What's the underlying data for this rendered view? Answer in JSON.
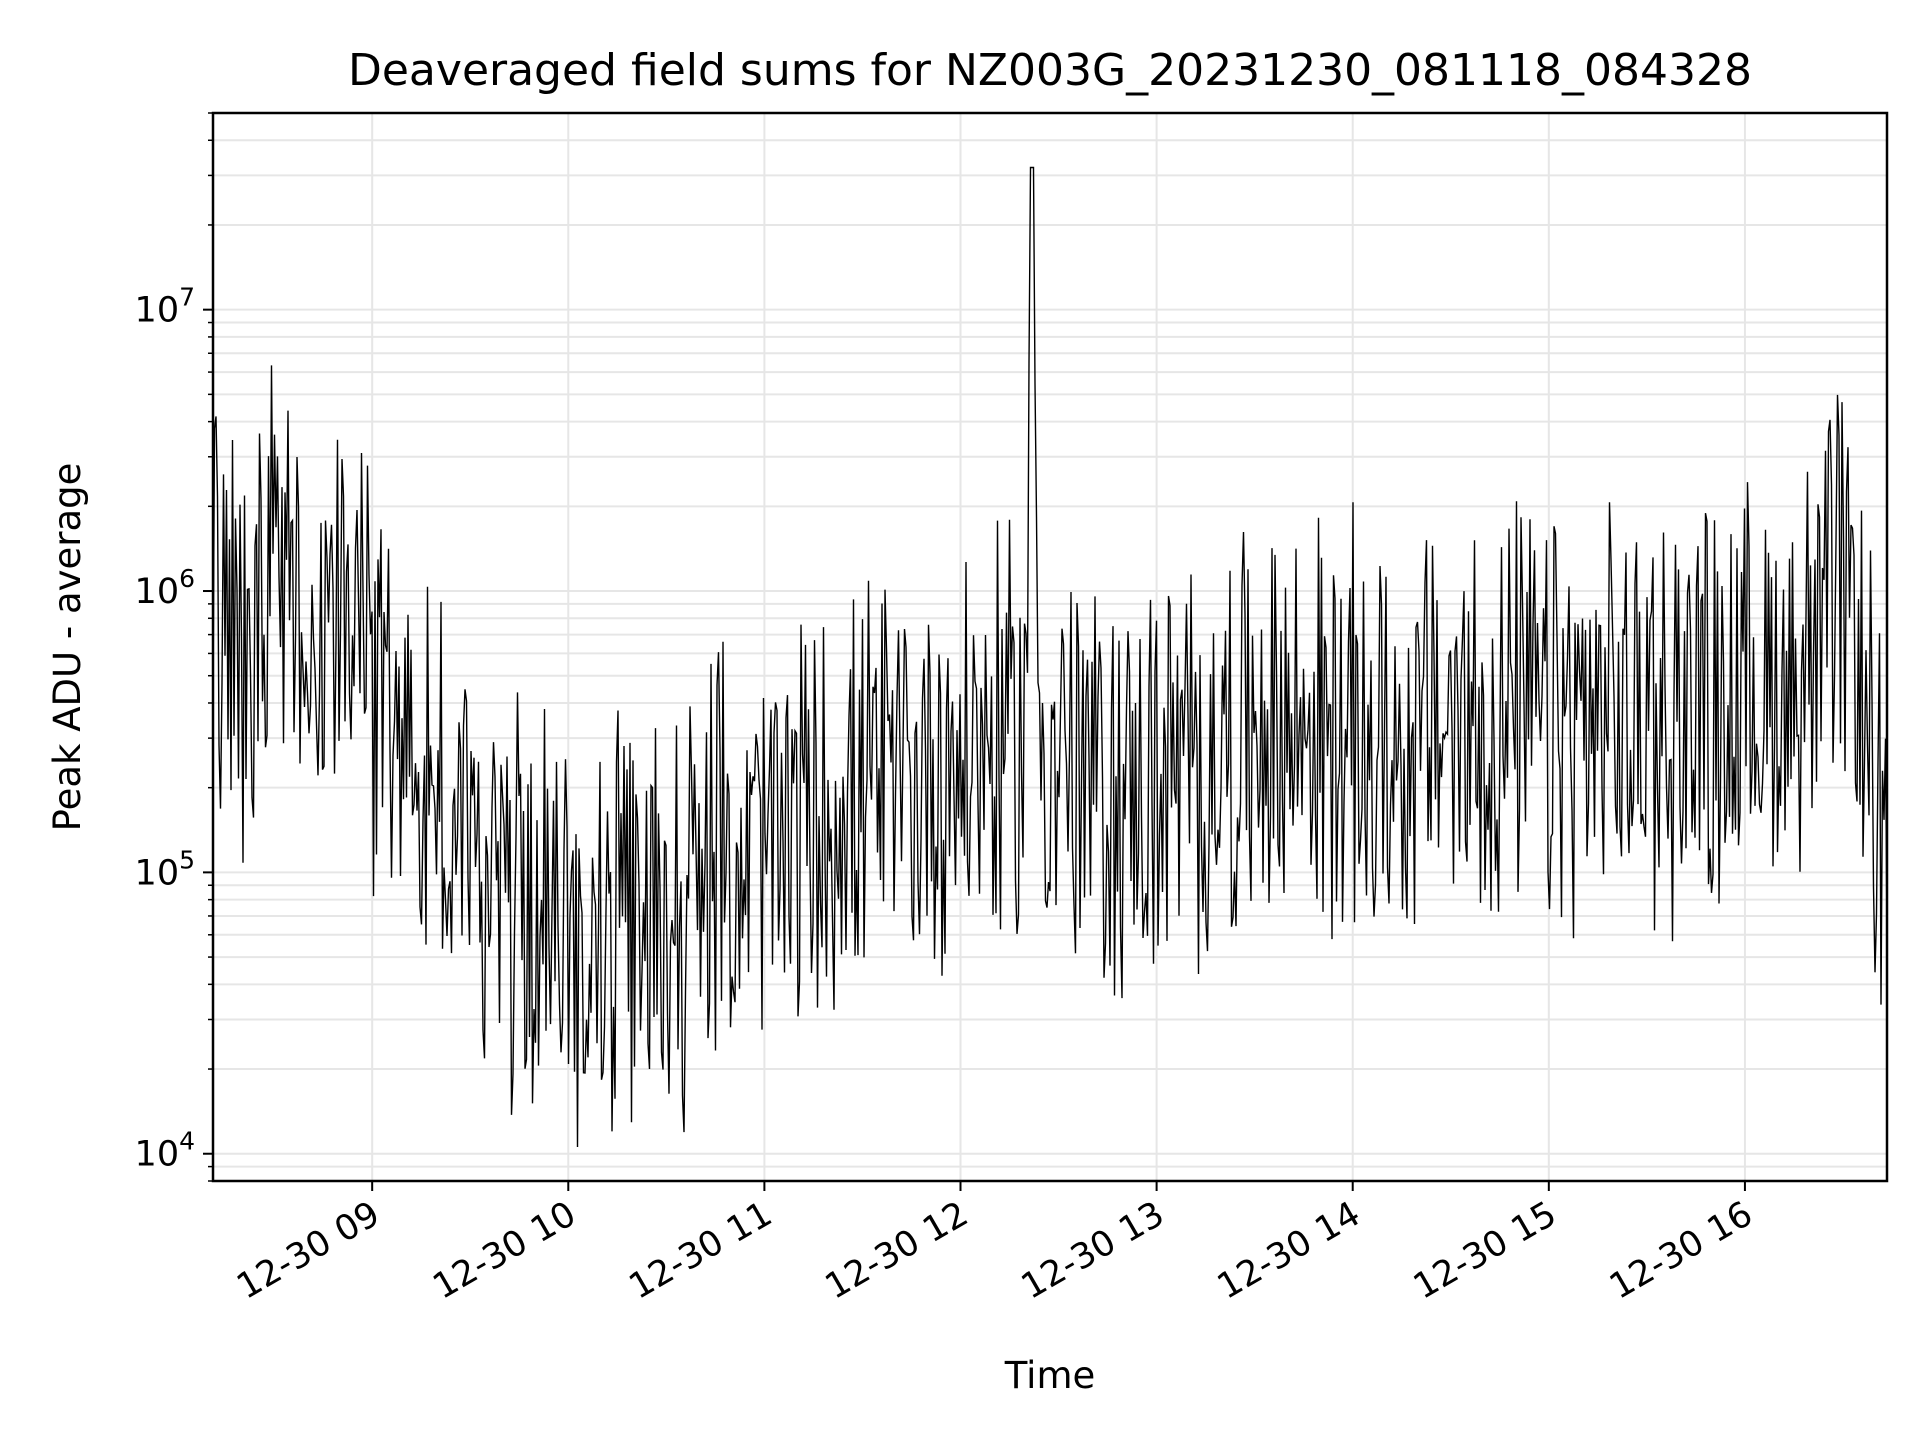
{
  "chart_data": {
    "type": "line",
    "title": "Deaveraged field sums for NZ003G_20231230_081118_084328",
    "xlabel": "Time",
    "ylabel": "Peak ADU - average",
    "xlim": [
      "2023-12-30 08:11:18",
      "2023-12-30 16:43:28"
    ],
    "ylim": [
      8000,
      50000000
    ],
    "yscale": "log",
    "grid": true,
    "x_ticks": [
      {
        "value": "2023-12-30 09:00",
        "label": "12-30 09"
      },
      {
        "value": "2023-12-30 10:00",
        "label": "12-30 10"
      },
      {
        "value": "2023-12-30 11:00",
        "label": "12-30 11"
      },
      {
        "value": "2023-12-30 12:00",
        "label": "12-30 12"
      },
      {
        "value": "2023-12-30 13:00",
        "label": "12-30 13"
      },
      {
        "value": "2023-12-30 14:00",
        "label": "12-30 14"
      },
      {
        "value": "2023-12-30 15:00",
        "label": "12-30 15"
      },
      {
        "value": "2023-12-30 16:00",
        "label": "12-30 16"
      }
    ],
    "y_ticks": [
      {
        "value": 10000,
        "base": "10",
        "exp": "4"
      },
      {
        "value": 100000,
        "base": "10",
        "exp": "5"
      },
      {
        "value": 1000000,
        "base": "10",
        "exp": "6"
      },
      {
        "value": 10000000,
        "base": "10",
        "exp": "7"
      }
    ],
    "series": [
      {
        "color": "#000000",
        "x": [
          "2023-12-30 08:11:18",
          "2023-12-30 08:20",
          "2023-12-30 08:30",
          "2023-12-30 08:40",
          "2023-12-30 08:50",
          "2023-12-30 09:00",
          "2023-12-30 09:10",
          "2023-12-30 09:20",
          "2023-12-30 09:30",
          "2023-12-30 09:40",
          "2023-12-30 09:50",
          "2023-12-30 10:00",
          "2023-12-30 10:10",
          "2023-12-30 10:20",
          "2023-12-30 10:30",
          "2023-12-30 10:40",
          "2023-12-30 10:50",
          "2023-12-30 11:00",
          "2023-12-30 11:10",
          "2023-12-30 11:20",
          "2023-12-30 11:30",
          "2023-12-30 11:40",
          "2023-12-30 11:50",
          "2023-12-30 12:00",
          "2023-12-30 12:10",
          "2023-12-30 12:20",
          "2023-12-30 12:22",
          "2023-12-30 12:24",
          "2023-12-30 12:30",
          "2023-12-30 12:40",
          "2023-12-30 12:50",
          "2023-12-30 13:00",
          "2023-12-30 13:10",
          "2023-12-30 13:20",
          "2023-12-30 13:30",
          "2023-12-30 13:40",
          "2023-12-30 13:50",
          "2023-12-30 14:00",
          "2023-12-30 14:10",
          "2023-12-30 14:20",
          "2023-12-30 14:30",
          "2023-12-30 14:40",
          "2023-12-30 14:50",
          "2023-12-30 15:00",
          "2023-12-30 15:10",
          "2023-12-30 15:20",
          "2023-12-30 15:30",
          "2023-12-30 15:40",
          "2023-12-30 15:50",
          "2023-12-30 16:00",
          "2023-12-30 16:10",
          "2023-12-30 16:20",
          "2023-12-30 16:30",
          "2023-12-30 16:35",
          "2023-12-30 16:40",
          "2023-12-30 16:43:28"
        ],
        "y": [
          900000,
          600000,
          1200000,
          800000,
          1100000,
          500000,
          300000,
          180000,
          120000,
          90000,
          70000,
          60000,
          55000,
          60000,
          70000,
          90000,
          110000,
          120000,
          140000,
          160000,
          180000,
          200000,
          220000,
          250000,
          280000,
          300000,
          32000000,
          300000,
          250000,
          200000,
          180000,
          200000,
          220000,
          260000,
          300000,
          320000,
          320000,
          300000,
          280000,
          300000,
          320000,
          340000,
          340000,
          330000,
          320000,
          330000,
          350000,
          370000,
          400000,
          420000,
          450000,
          600000,
          1000000,
          500000,
          180000,
          100000
        ]
      }
    ]
  }
}
